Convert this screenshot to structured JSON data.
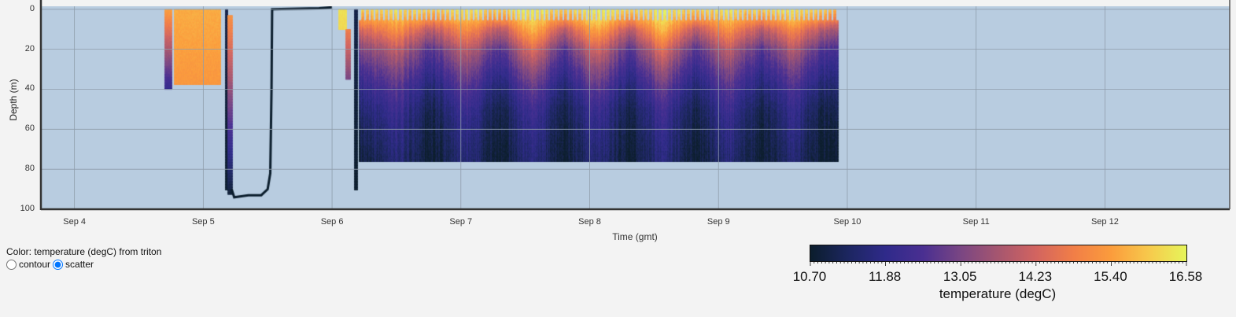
{
  "controls": {
    "color_label": "Color: temperature (degC) from triton",
    "modes": [
      {
        "label": "contour",
        "selected": false
      },
      {
        "label": "scatter",
        "selected": true
      }
    ]
  },
  "colors": {
    "plot_background": "#b8cce0",
    "grid": "#8f9dab",
    "page_background": "#f3f3f3"
  },
  "chart_data": {
    "type": "scatter",
    "xlabel": "Time (gmt)",
    "ylabel": "Depth (m)",
    "x_ticks": [
      "Sep 4",
      "Sep 5",
      "Sep 6",
      "Sep 7",
      "Sep 8",
      "Sep 9",
      "Sep 10",
      "Sep 11",
      "Sep 12"
    ],
    "y_ticks": [
      "0",
      "20",
      "40",
      "60",
      "80",
      "100"
    ],
    "xlim": [
      "Sep 3 17:45",
      "Sep 12 23:15"
    ],
    "ylim": [
      100,
      -1.5
    ],
    "y_reversed": true,
    "grid": true,
    "colorbar": {
      "label": "temperature (degC)",
      "ticks": [
        "10.70",
        "11.88",
        "13.05",
        "14.23",
        "15.40",
        "16.58"
      ],
      "range": [
        10.7,
        16.58
      ],
      "colormap": "thermal",
      "stops": [
        "#0b1d2c",
        "#1c2660",
        "#2f2a8a",
        "#4a2f91",
        "#7a4683",
        "#a6566f",
        "#d26460",
        "#f17e47",
        "#fb9c3c",
        "#f7c94c",
        "#e6f55a"
      ]
    },
    "section": {
      "start": "Sep 6 05:00",
      "end": "Sep 9 22:05",
      "depths": [
        0,
        5,
        10,
        20,
        30,
        40,
        50,
        60,
        70,
        76
      ],
      "times": [
        "Sep 6 05:00",
        "Sep 6 12:00",
        "Sep 6 18:15",
        "Sep 7 00:45",
        "Sep 7 07:12",
        "Sep 7 13:12",
        "Sep 7 19:00",
        "Sep 8 01:12",
        "Sep 8 07:26",
        "Sep 8 13:26",
        "Sep 8 19:40",
        "Sep 9 01:40",
        "Sep 9 07:55",
        "Sep 9 13:40",
        "Sep 9 19:12",
        "Sep 9 22:05"
      ],
      "temperature": [
        [
          16.0,
          15.2,
          14.2,
          13.0,
          12.3,
          11.8,
          11.4,
          11.1,
          10.9,
          10.8
        ],
        [
          16.3,
          15.8,
          15.2,
          14.0,
          13.2,
          12.6,
          12.2,
          11.9,
          11.7,
          11.6
        ],
        [
          16.0,
          15.0,
          13.8,
          12.5,
          11.9,
          11.4,
          11.0,
          10.85,
          10.75,
          10.72
        ],
        [
          16.3,
          15.8,
          15.2,
          14.0,
          13.2,
          12.6,
          12.2,
          11.9,
          11.7,
          11.6
        ],
        [
          16.0,
          15.0,
          13.8,
          12.5,
          11.9,
          11.4,
          11.0,
          10.85,
          10.75,
          10.72
        ],
        [
          16.5,
          16.2,
          15.8,
          14.5,
          13.5,
          12.8,
          12.3,
          12.0,
          11.8,
          11.7
        ],
        [
          16.0,
          15.0,
          13.8,
          12.5,
          11.9,
          11.4,
          11.0,
          10.85,
          10.75,
          10.72
        ],
        [
          16.5,
          16.2,
          15.6,
          14.3,
          13.4,
          12.7,
          12.2,
          11.9,
          11.7,
          11.6
        ],
        [
          16.0,
          15.0,
          13.8,
          12.5,
          11.9,
          11.4,
          11.0,
          10.85,
          10.75,
          10.72
        ],
        [
          16.5,
          16.2,
          15.8,
          14.5,
          13.5,
          12.8,
          12.3,
          12.0,
          11.8,
          11.7
        ],
        [
          16.0,
          15.0,
          13.8,
          12.5,
          11.9,
          11.4,
          11.0,
          10.85,
          10.75,
          10.72
        ],
        [
          16.3,
          15.8,
          15.2,
          14.0,
          13.2,
          12.6,
          12.2,
          11.9,
          11.7,
          11.6
        ],
        [
          16.0,
          15.0,
          13.8,
          12.5,
          11.9,
          11.4,
          11.0,
          10.85,
          10.75,
          10.72
        ],
        [
          16.3,
          15.8,
          15.0,
          13.8,
          13.0,
          12.4,
          12.0,
          11.8,
          11.6,
          11.5
        ],
        [
          16.0,
          15.0,
          13.8,
          12.5,
          11.9,
          11.4,
          11.0,
          10.85,
          10.75,
          10.72
        ],
        [
          15.8,
          14.8,
          13.6,
          12.4,
          11.9,
          11.5,
          11.2,
          11.0,
          10.9,
          10.8
        ]
      ]
    },
    "segments": [
      {
        "start": "Sep 4 16:48",
        "end": "Sep 4 18:00",
        "depth_top": 0,
        "depth_bottom": 40,
        "temp_top": 15.4,
        "temp_bottom": 11.9
      },
      {
        "start": "Sep 4 18:30",
        "end": "Sep 5 03:00",
        "depth_top": 0,
        "depth_bottom": 37,
        "temp_top": 15.6,
        "temp_bottom": 15.3
      },
      {
        "start": "Sep 5 04:05",
        "end": "Sep 5 04:25",
        "depth_top": 0,
        "depth_bottom": 90,
        "temp_top": 11.0,
        "temp_bottom": 10.7
      },
      {
        "start": "Sep 5 04:30",
        "end": "Sep 5 05:10",
        "depth_top": 3,
        "depth_bottom": 92,
        "temp_top": 15.2,
        "temp_bottom": 10.8
      },
      {
        "start": "Sep 6 01:12",
        "end": "Sep 6 02:30",
        "depth_top": 0,
        "depth_bottom": 10,
        "temp_top": 16.3,
        "temp_bottom": 16.2
      },
      {
        "start": "Sep 6 02:30",
        "end": "Sep 6 03:10",
        "depth_top": 10,
        "depth_bottom": 35,
        "temp_top": 14.8,
        "temp_bottom": 13.0
      },
      {
        "start": "Sep 6 04:05",
        "end": "Sep 6 04:35",
        "depth_top": 0,
        "depth_bottom": 90,
        "temp_top": 11.0,
        "temp_bottom": 10.7
      }
    ],
    "track": {
      "temperature": 10.7,
      "points": [
        [
          "Sep 5 05:17",
          90
        ],
        [
          "Sep 5 05:46",
          94
        ],
        [
          "Sep 5 08:24",
          93
        ],
        [
          "Sep 5 10:48",
          93
        ],
        [
          "Sep 5 12:00",
          90
        ],
        [
          "Sep 5 12:29",
          82
        ],
        [
          "Sep 5 12:43",
          40
        ],
        [
          "Sep 5 12:50",
          0
        ],
        [
          "Sep 5 21:36",
          -0.5
        ],
        [
          "Sep 6 00:00",
          -1
        ]
      ]
    }
  }
}
